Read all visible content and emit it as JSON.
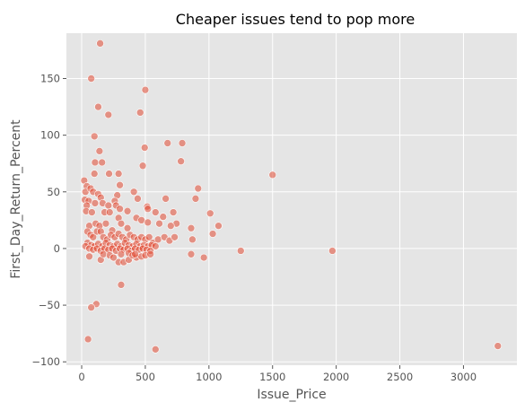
{
  "chart_data": {
    "type": "scatter",
    "title": "Cheaper issues tend to pop more",
    "xlabel": "Issue_Price",
    "ylabel": "First_Day_Return_Percent",
    "xlim": [
      -120,
      3420
    ],
    "ylim": [
      -103,
      190
    ],
    "xticks": [
      0,
      500,
      1000,
      1500,
      2000,
      2500,
      3000
    ],
    "yticks": [
      -100,
      -50,
      0,
      50,
      100,
      150
    ],
    "grid": true,
    "colors": {
      "background": "#E5E5E5",
      "point": "#E24A33",
      "grid": "#FFFFFF"
    },
    "points": [
      [
        145,
        181
      ],
      [
        75,
        150
      ],
      [
        500,
        140
      ],
      [
        130,
        125
      ],
      [
        460,
        120
      ],
      [
        210,
        118
      ],
      [
        100,
        99
      ],
      [
        140,
        86
      ],
      [
        495,
        89
      ],
      [
        790,
        93
      ],
      [
        675,
        93
      ],
      [
        480,
        73
      ],
      [
        780,
        77
      ],
      [
        105,
        76
      ],
      [
        160,
        76
      ],
      [
        215,
        66
      ],
      [
        100,
        66
      ],
      [
        290,
        66
      ],
      [
        1500,
        65
      ],
      [
        20,
        60
      ],
      [
        40,
        55
      ],
      [
        30,
        50
      ],
      [
        70,
        53
      ],
      [
        90,
        50
      ],
      [
        130,
        48
      ],
      [
        150,
        45
      ],
      [
        300,
        56
      ],
      [
        410,
        50
      ],
      [
        440,
        44
      ],
      [
        660,
        44
      ],
      [
        915,
        53
      ],
      [
        895,
        44
      ],
      [
        280,
        47
      ],
      [
        260,
        42
      ],
      [
        25,
        43
      ],
      [
        55,
        42
      ],
      [
        40,
        38
      ],
      [
        105,
        40
      ],
      [
        165,
        40
      ],
      [
        210,
        38
      ],
      [
        270,
        38
      ],
      [
        300,
        35
      ],
      [
        360,
        33
      ],
      [
        180,
        32
      ],
      [
        35,
        33
      ],
      [
        80,
        32
      ],
      [
        220,
        32
      ],
      [
        515,
        37
      ],
      [
        520,
        35
      ],
      [
        580,
        32
      ],
      [
        720,
        32
      ],
      [
        1010,
        31
      ],
      [
        1075,
        20
      ],
      [
        1030,
        13
      ],
      [
        745,
        22
      ],
      [
        60,
        20
      ],
      [
        110,
        22
      ],
      [
        140,
        20
      ],
      [
        190,
        22
      ],
      [
        240,
        16
      ],
      [
        290,
        27
      ],
      [
        310,
        22
      ],
      [
        360,
        18
      ],
      [
        430,
        27
      ],
      [
        470,
        25
      ],
      [
        520,
        23
      ],
      [
        610,
        22
      ],
      [
        640,
        28
      ],
      [
        700,
        20
      ],
      [
        860,
        18
      ],
      [
        870,
        8
      ],
      [
        860,
        -5
      ],
      [
        960,
        -8
      ],
      [
        1250,
        -2
      ],
      [
        1970,
        -2
      ],
      [
        45,
        15
      ],
      [
        70,
        12
      ],
      [
        90,
        10
      ],
      [
        120,
        15
      ],
      [
        150,
        15
      ],
      [
        170,
        10
      ],
      [
        200,
        8
      ],
      [
        230,
        12
      ],
      [
        260,
        10
      ],
      [
        290,
        13
      ],
      [
        320,
        10
      ],
      [
        350,
        8
      ],
      [
        380,
        12
      ],
      [
        410,
        10
      ],
      [
        440,
        8
      ],
      [
        470,
        10
      ],
      [
        500,
        8
      ],
      [
        530,
        10
      ],
      [
        560,
        5
      ],
      [
        600,
        8
      ],
      [
        650,
        10
      ],
      [
        690,
        7
      ],
      [
        730,
        10
      ],
      [
        45,
        5
      ],
      [
        75,
        3
      ],
      [
        100,
        2
      ],
      [
        130,
        4
      ],
      [
        160,
        2
      ],
      [
        190,
        5
      ],
      [
        220,
        3
      ],
      [
        250,
        2
      ],
      [
        280,
        4
      ],
      [
        310,
        2
      ],
      [
        340,
        5
      ],
      [
        370,
        3
      ],
      [
        400,
        2
      ],
      [
        430,
        4
      ],
      [
        460,
        2
      ],
      [
        490,
        3
      ],
      [
        520,
        2
      ],
      [
        550,
        3
      ],
      [
        580,
        2
      ],
      [
        30,
        2
      ],
      [
        60,
        0
      ],
      [
        90,
        -1
      ],
      [
        120,
        0
      ],
      [
        150,
        -2
      ],
      [
        180,
        0
      ],
      [
        210,
        -1
      ],
      [
        240,
        0
      ],
      [
        270,
        -2
      ],
      [
        300,
        0
      ],
      [
        330,
        -1
      ],
      [
        360,
        0
      ],
      [
        390,
        -2
      ],
      [
        420,
        0
      ],
      [
        450,
        -1
      ],
      [
        480,
        0
      ],
      [
        510,
        -1
      ],
      [
        540,
        -2
      ],
      [
        60,
        -7
      ],
      [
        150,
        -10
      ],
      [
        290,
        -12
      ],
      [
        330,
        -12
      ],
      [
        370,
        -10
      ],
      [
        430,
        -8
      ],
      [
        470,
        -7
      ],
      [
        500,
        -6
      ],
      [
        540,
        -5
      ],
      [
        170,
        -5
      ],
      [
        220,
        -6
      ],
      [
        250,
        -8
      ],
      [
        310,
        -5
      ],
      [
        370,
        -4
      ],
      [
        400,
        -6
      ],
      [
        420,
        -5
      ],
      [
        115,
        -49
      ],
      [
        310,
        -32
      ],
      [
        75,
        -52
      ],
      [
        50,
        -80
      ],
      [
        580,
        -89
      ],
      [
        3270,
        -86
      ]
    ]
  }
}
